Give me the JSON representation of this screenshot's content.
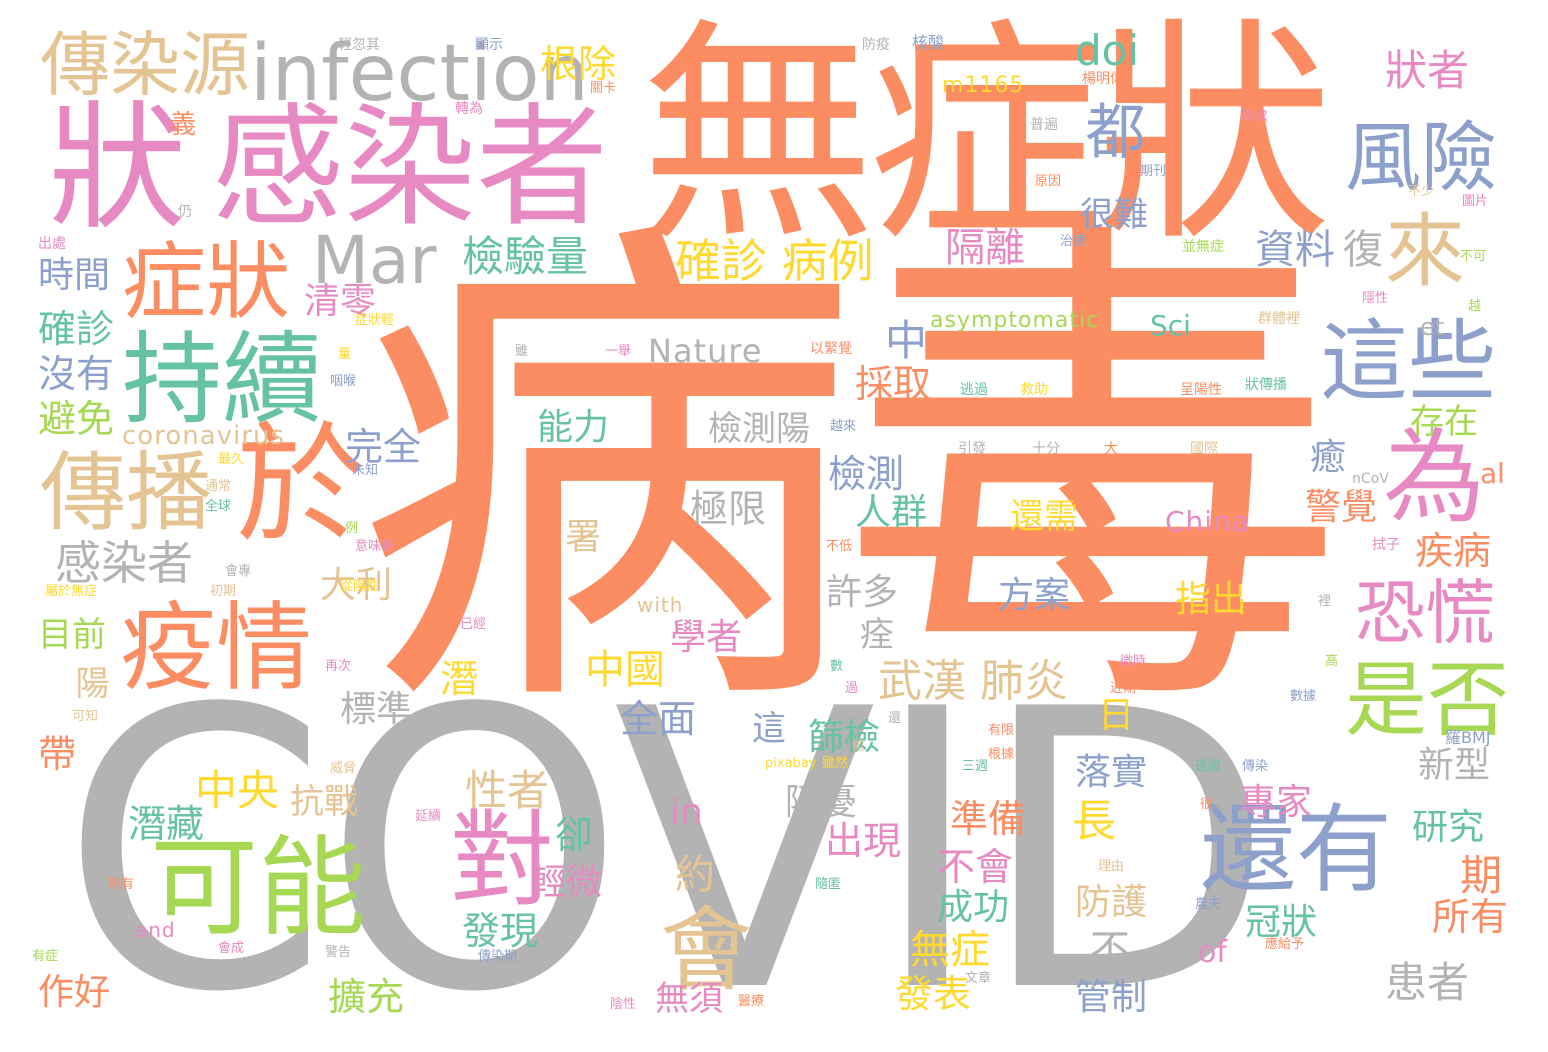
{
  "palette": {
    "orange": "#fc8d62",
    "gray": "#b3b3b3",
    "pink": "#e78ac3",
    "blue": "#8da0cb",
    "green": "#66c2a5",
    "lime": "#a6d854",
    "yellow": "#ffd92f",
    "tan": "#e5c494"
  },
  "words": {
    "covid": "COVID",
    "virus": "病毒",
    "asymptomatic_zh": "無症狀",
    "infected": "感染者",
    "symptom_left": "狀",
    "infection": "infection",
    "source": "傳染源",
    "spread": "傳播",
    "possible": "可能",
    "epidemic": "疫情",
    "symptoms": "症狀",
    "persist": "持續",
    "mar": "Mar",
    "yu": "於",
    "wei": "為",
    "these": "這些",
    "risk": "風險",
    "come": "來",
    "all": "都",
    "whether": "是否",
    "panic": "恐慌",
    "still": "還有",
    "hui": "會",
    "dui": "對",
    "infected_small": "感染者",
    "doi": "doi",
    "uproot": "根除",
    "symptom_holder": "狀者",
    "confirmed_cases": "確診 病例",
    "test_volume": "檢驗量",
    "isolation": "隔離",
    "hard": "很難",
    "data": "資料",
    "recover": "復",
    "time": "時間",
    "clear": "清零",
    "confirmed": "確診",
    "none": "沒有",
    "avoid": "避免",
    "coronavirus": "coronavirus",
    "nature": "Nature",
    "asymptomatic_en": "asymptomatic",
    "sci": "Sci",
    "et": "et",
    "zhong": "中",
    "take": "採取",
    "ability": "能力",
    "test_positive": "檢測陽",
    "exist": "存在",
    "complete": "完全",
    "test": "檢測",
    "crowd": "人群",
    "heal": "癒",
    "alert": "警覺",
    "disease": "疾病",
    "limit": "極限",
    "china": "China",
    "need": "還需",
    "al": "al",
    "italy": "大利",
    "many": "許多",
    "plan": "方案",
    "point_out": "指出",
    "wuhan_pneumonia": "武漢 肺炎",
    "china_zh": "中國",
    "scholar": "學者",
    "comprehensive": "全面",
    "standard": "標準",
    "day": "日",
    "screening": "篩檢",
    "central": "中央",
    "resistance": "抗戰",
    "positive_holder": "性者",
    "hidden_worry": "隱憂",
    "in": "in",
    "long": "長",
    "expert": "專家",
    "research": "研究",
    "latent": "潛藏",
    "yet": "卻",
    "appear": "出現",
    "prepare": "準備",
    "not_will": "不會",
    "period": "期",
    "mild": "輕微",
    "yue": "約",
    "implement": "落實",
    "all_of": "所有",
    "success": "成功",
    "protection": "防護",
    "coronal": "冠狀",
    "discover": "發現",
    "no_symptom": "無症",
    "bu": "不",
    "of": "of",
    "do_well": "作好",
    "expand": "擴充",
    "no_need": "無須",
    "publish": "發表",
    "control": "管制",
    "patient": "患者",
    "current": "目前",
    "yang": "陽",
    "qian": "潛",
    "dai": "帶",
    "zhe": "這",
    "new_type": "新型",
    "shu": "署",
    "zhi": "痊",
    "yi": "義",
    "m1165": "m1165",
    "pixabay": "pixabay",
    "with": "with",
    "and": "and",
    "bmj": "羅BMJ",
    "ncov": "nCoV",
    "small": [
      "輕忽其",
      "顯示",
      "防疫",
      "核酸",
      "楊明偉",
      "關卡",
      "轉為",
      "普遍",
      "尋求",
      "原因",
      "期刊",
      "不少",
      "圖片",
      "仍",
      "出處",
      "治療",
      "並無症",
      "不可",
      "症狀輕",
      "漏洞",
      "群體裡",
      "隱性",
      "越",
      "量",
      "以緊覺",
      "一舉",
      "雖",
      "咽喉",
      "逃過",
      "救助",
      "呈陽性",
      "狀傳播",
      "越來",
      "最久",
      "引發",
      "十分",
      "大",
      "國際",
      "未知",
      "通常",
      "全球",
      "意味著",
      "不低",
      "例",
      "初期",
      "會專",
      "屬於無症",
      "從陽性",
      "拭子",
      "已經",
      "再次",
      "裡",
      "數",
      "微時",
      "高",
      "可知",
      "過",
      "近期",
      "還",
      "數據",
      "有限",
      "位",
      "根據",
      "雖然",
      "威脅",
      "三週",
      "傳染",
      "延續",
      "很",
      "透過",
      "理由",
      "隨匿",
      "現有",
      "農夫",
      "有症",
      "會成",
      "警告",
      "傳染期",
      "空隨",
      "文章",
      "陰性",
      "醫療",
      "應給予"
    ]
  }
}
